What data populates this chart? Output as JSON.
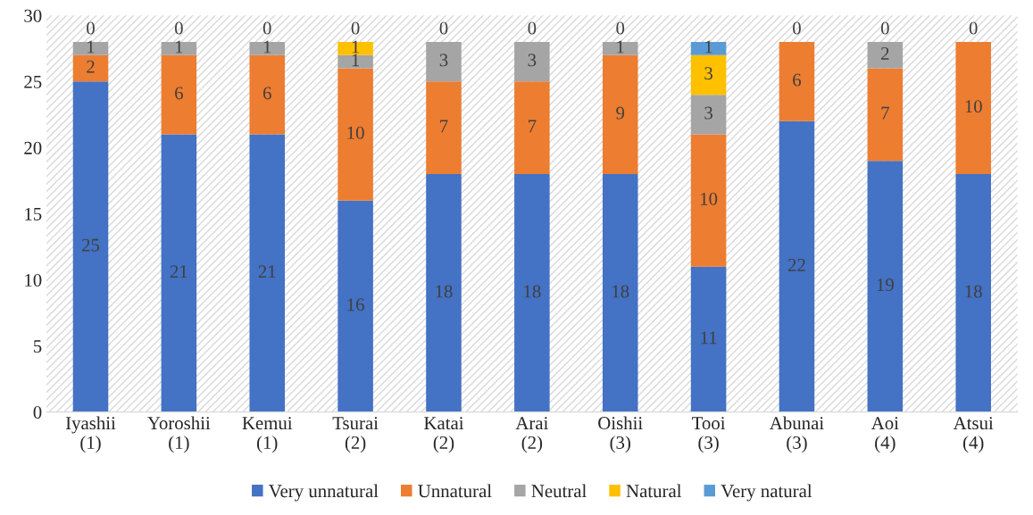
{
  "chart_data": {
    "type": "bar",
    "stacked": true,
    "categories": [
      "Iyashii\n(1)",
      "Yoroshii\n(1)",
      "Kemui\n(1)",
      "Tsurai\n(2)",
      "Katai\n(2)",
      "Arai\n(2)",
      "Oishii\n(3)",
      "Tooi\n(3)",
      "Abunai\n(3)",
      "Aoi\n(4)",
      "Atsui\n(4)"
    ],
    "series": [
      {
        "name": "Very unnatural",
        "color": "#4472c4",
        "values": [
          25,
          21,
          21,
          16,
          18,
          18,
          18,
          11,
          22,
          19,
          18
        ],
        "value_labels": [
          "25",
          "21",
          "21",
          "16",
          "18",
          "18",
          "18",
          "11",
          "22",
          "19",
          "18"
        ]
      },
      {
        "name": "Unnatural",
        "color": "#ed7d31",
        "values": [
          2,
          6,
          6,
          10,
          7,
          7,
          9,
          10,
          6,
          7,
          10
        ],
        "value_labels": [
          "2",
          "6",
          "6",
          "10",
          "7",
          "7",
          "9",
          "10",
          "6",
          "7",
          "10"
        ]
      },
      {
        "name": "Neutral",
        "color": "#a5a5a5",
        "values": [
          1,
          1,
          1,
          1,
          3,
          3,
          1,
          3,
          0,
          2,
          0
        ],
        "value_labels": [
          "1",
          "1",
          "1",
          "1",
          "3",
          "3",
          "1",
          "3",
          null,
          "2",
          null
        ]
      },
      {
        "name": "Natural",
        "color": "#ffc000",
        "values": [
          0,
          0,
          0,
          1,
          0,
          0,
          0,
          3,
          0,
          0,
          0
        ],
        "value_labels": [
          null,
          null,
          null,
          "1",
          null,
          null,
          null,
          "3",
          null,
          null,
          null
        ]
      },
      {
        "name": "Very natural",
        "color": "#5b9bd5",
        "values": [
          0,
          0,
          0,
          0,
          0,
          0,
          0,
          1,
          0,
          0,
          0
        ],
        "value_labels": [
          "0",
          "0",
          "0",
          "0",
          "0",
          "0",
          "0",
          "1",
          "0",
          "0",
          "0"
        ]
      }
    ],
    "ylim": [
      0,
      30
    ],
    "yticks": [
      0,
      5,
      10,
      15,
      20,
      25,
      30
    ],
    "grid": false,
    "legend": "bottom"
  }
}
